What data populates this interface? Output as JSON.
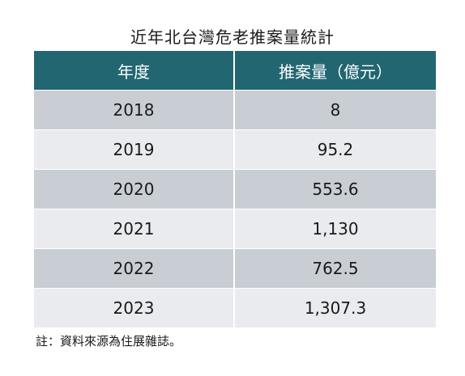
{
  "chart_data": {
    "type": "table",
    "title": "近年北台灣危老推案量統計",
    "columns": [
      "年度",
      "推案量（億元）"
    ],
    "rows": [
      [
        "2018",
        "8"
      ],
      [
        "2019",
        "95.2"
      ],
      [
        "2020",
        "553.6"
      ],
      [
        "2021",
        "1,130"
      ],
      [
        "2022",
        "762.5"
      ],
      [
        "2023",
        "1,307.3"
      ]
    ],
    "x": [
      2018,
      2019,
      2020,
      2021,
      2022,
      2023
    ],
    "values": [
      8,
      95.2,
      553.6,
      1130,
      762.5,
      1307.3
    ],
    "note": "註：資料來源為住展雜誌。",
    "header_color": "#226671",
    "row_colors": [
      "#c9ced4",
      "#e9ebee"
    ]
  }
}
